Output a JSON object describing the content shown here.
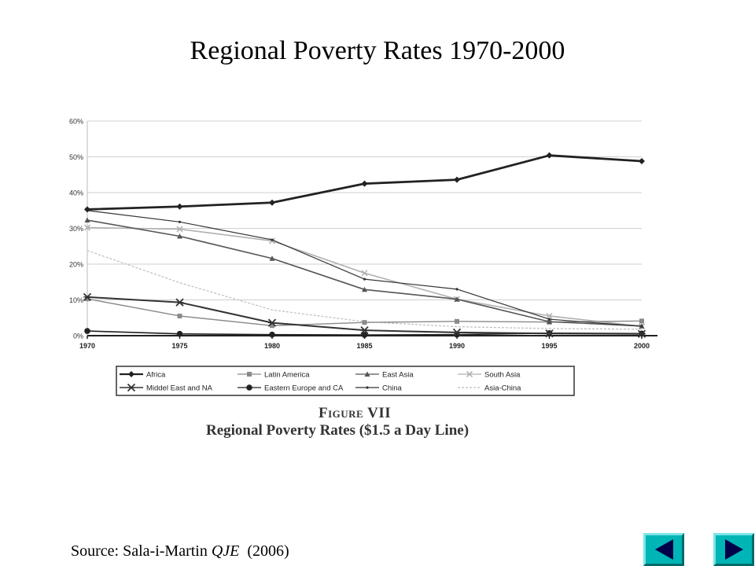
{
  "slide": {
    "title": "Regional Poverty Rates 1970-2000",
    "figure_label": "Figure VII",
    "figure_caption": "Regional Poverty Rates ($1.5 a Day Line)",
    "source_prefix": "Source: Sala-i-Martin ",
    "source_journal": "QJE",
    "source_suffix": "  (2006)"
  },
  "nav": {
    "prev_icon": "triangle-left-icon",
    "next_icon": "triangle-right-icon",
    "color": "#00b5b5"
  },
  "chart_data": {
    "type": "line",
    "title": "",
    "xlabel": "",
    "ylabel": "",
    "x": [
      1970,
      1975,
      1980,
      1985,
      1990,
      1995,
      2000
    ],
    "xticks": [
      "1970",
      "1975",
      "1980",
      "1985",
      "1990",
      "1995",
      "2000"
    ],
    "ylim": [
      0,
      60
    ],
    "yticks": [
      "0%",
      "10%",
      "20%",
      "30%",
      "40%",
      "50%",
      "60%"
    ],
    "grid": true,
    "legend_position": "bottom",
    "series": [
      {
        "name": "Africa",
        "values": [
          35.3,
          36.1,
          37.2,
          42.5,
          43.6,
          50.4,
          48.8
        ],
        "color": "#222222",
        "width": 2.8,
        "marker": "diamond",
        "dash": ""
      },
      {
        "name": "Latin America",
        "values": [
          10.3,
          5.5,
          2.8,
          3.7,
          4.0,
          3.8,
          4.1
        ],
        "color": "#8a8a8a",
        "width": 1.4,
        "marker": "square",
        "dash": ""
      },
      {
        "name": "East Asia",
        "values": [
          32.3,
          27.8,
          21.6,
          12.9,
          10.2,
          3.9,
          2.7
        ],
        "color": "#555555",
        "width": 1.6,
        "marker": "triangle",
        "dash": ""
      },
      {
        "name": "South Asia",
        "values": [
          30.2,
          29.8,
          26.5,
          17.5,
          10.2,
          5.5,
          2.6
        ],
        "color": "#b0b0b0",
        "width": 1.6,
        "marker": "cross",
        "dash": ""
      },
      {
        "name": "Middel East and NA",
        "values": [
          10.8,
          9.3,
          3.6,
          1.5,
          0.9,
          0.6,
          0.5
        ],
        "color": "#333333",
        "width": 2.0,
        "marker": "star",
        "dash": ""
      },
      {
        "name": "Eastern Europe and CA",
        "values": [
          1.3,
          0.5,
          0.3,
          0.2,
          0.3,
          0.7,
          0.6
        ],
        "color": "#222222",
        "width": 1.6,
        "marker": "circle",
        "dash": ""
      },
      {
        "name": "China",
        "values": [
          35.0,
          31.8,
          26.8,
          15.8,
          13.0,
          4.6,
          2.6
        ],
        "color": "#333333",
        "width": 1.2,
        "marker": "dot",
        "dash": ""
      },
      {
        "name": "Asia-China",
        "values": [
          23.8,
          14.8,
          7.2,
          3.9,
          2.5,
          2.0,
          1.8
        ],
        "color": "#bdbdbd",
        "width": 1.2,
        "marker": "none",
        "dash": "3,2"
      }
    ]
  }
}
